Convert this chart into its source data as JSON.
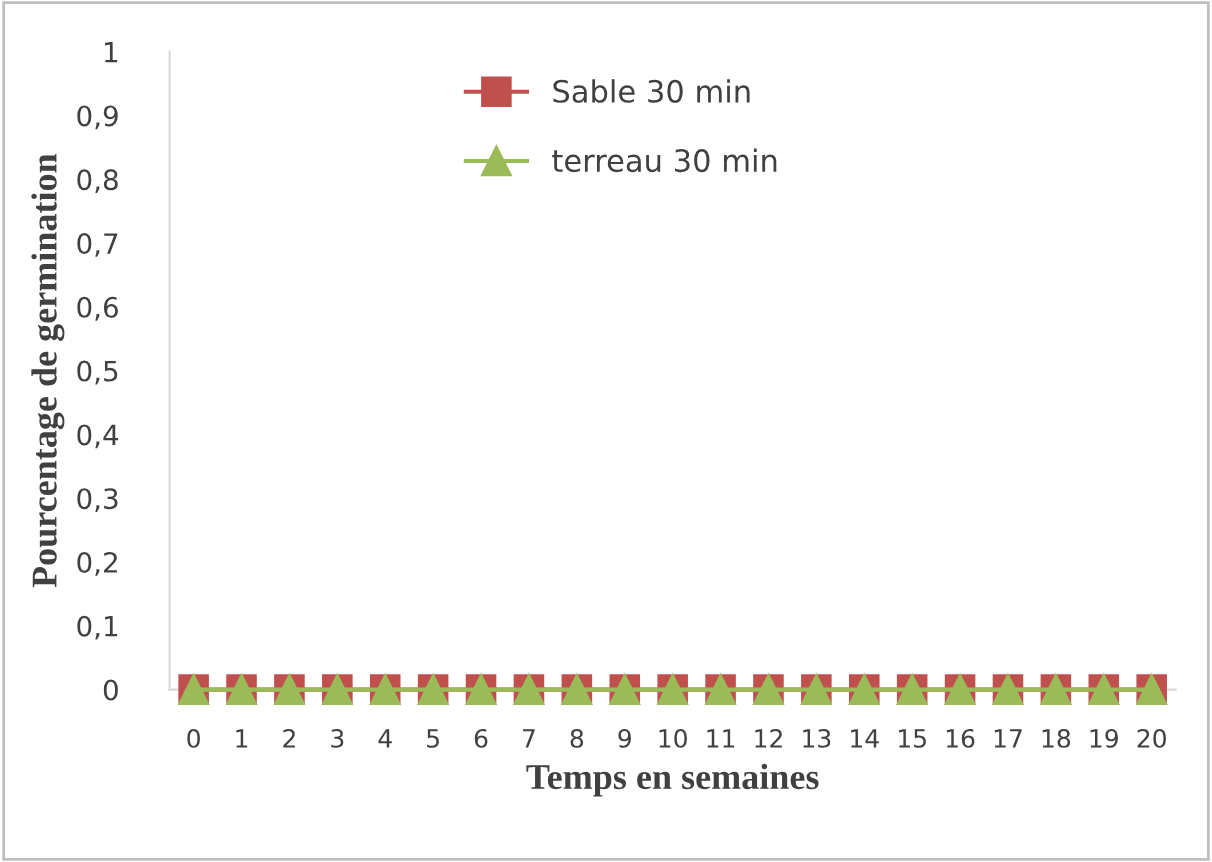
{
  "chart_data": {
    "type": "line",
    "xlabel": "Temps en semaines",
    "ylabel": "Pourcentage de germination",
    "categories": [
      "0",
      "1",
      "2",
      "3",
      "4",
      "5",
      "6",
      "7",
      "8",
      "9",
      "10",
      "11",
      "12",
      "13",
      "14",
      "15",
      "16",
      "17",
      "18",
      "19",
      "20"
    ],
    "series": [
      {
        "name": "Sable 30 min",
        "color": "#c0504d",
        "marker": "square",
        "values": [
          0,
          0,
          0,
          0,
          0,
          0,
          0,
          0,
          0,
          0,
          0,
          0,
          0,
          0,
          0,
          0,
          0,
          0,
          0,
          0,
          0
        ]
      },
      {
        "name": "terreau 30 min",
        "color": "#9bbb59",
        "marker": "triangle",
        "values": [
          0,
          0,
          0,
          0,
          0,
          0,
          0,
          0,
          0,
          0,
          0,
          0,
          0,
          0,
          0,
          0,
          0,
          0,
          0,
          0,
          0
        ]
      }
    ],
    "ylim": [
      0,
      1
    ],
    "yticks": [
      0,
      {
        "value": 0.1,
        "label": "0,1"
      },
      {
        "value": 0.2,
        "label": "0,2"
      },
      {
        "value": 0.3,
        "label": "0,3"
      },
      {
        "value": 0.4,
        "label": "0,4"
      },
      {
        "value": 0.5,
        "label": "0,5"
      },
      {
        "value": 0.6,
        "label": "0,6"
      },
      {
        "value": 0.7,
        "label": "0,7"
      },
      {
        "value": 0.8,
        "label": "0,8"
      },
      {
        "value": 0.9,
        "label": "0,9"
      },
      1
    ],
    "grid": false,
    "legend": "top"
  }
}
